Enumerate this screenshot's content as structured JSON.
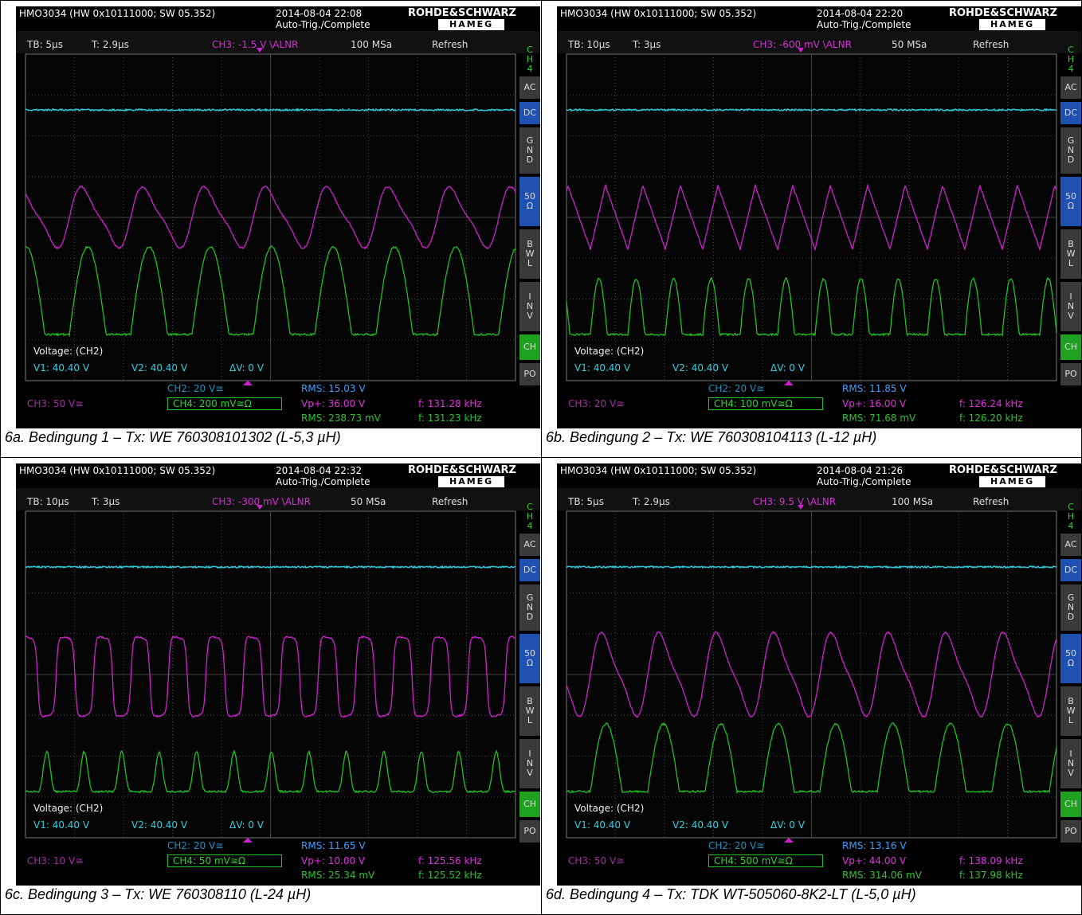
{
  "panels": [
    {
      "header": {
        "model": "HMO3034 (HW 0x10111000; SW 05.352)",
        "datetime": "2014-08-04 22:08",
        "trigger_mode": "Auto-Trig./Complete",
        "brand": "ROHDE&SCHWARZ",
        "sub_brand": "HAMEG"
      },
      "status": {
        "timebase": "TB: 5µs",
        "trigger_time": "T: 2.9µs",
        "trigger": "CH3: -1.5 V \\ALNR",
        "sample_rate": "100 MSa",
        "mode": "Refresh"
      },
      "side_channel": "CH4",
      "side_buttons": [
        "AC",
        "DC",
        "GND",
        "50 Ω",
        "BWL",
        "INV",
        "CH",
        "PO"
      ],
      "cursor": {
        "title": "Voltage: (CH2)",
        "v1": "V1: 40.40 V",
        "v2": "V2: 40.40 V",
        "dv": "ΔV: 0 V"
      },
      "footer": {
        "ch3": "CH3: 50 V≅",
        "ch2": "CH2: 20 V≅",
        "ch4": "CH4: 200 mV≅Ω",
        "rms_ch2": "RMS: 15.03 V",
        "vp_ch3": "Vp+: 36.00 V",
        "rms_ch4": "RMS: 238.73 mV",
        "f_ch3": "f: 131.28 kHz",
        "f_ch4": "f: 131.23 kHz"
      },
      "caption": "6a. Bedingung 1 – Tx: WE 760308101302 (L-5,3 µH)"
    },
    {
      "header": {
        "model": "HMO3034 (HW 0x10111000; SW 05.352)",
        "datetime": "2014-08-04 22:20",
        "trigger_mode": "Auto-Trig./Complete",
        "brand": "ROHDE&SCHWARZ",
        "sub_brand": "HAMEG"
      },
      "status": {
        "timebase": "TB: 10µs",
        "trigger_time": "T: 3µs",
        "trigger": "CH3: -600 mV \\ALNR",
        "sample_rate": "50 MSa",
        "mode": "Refresh"
      },
      "side_channel": "CH4",
      "side_buttons": [
        "AC",
        "DC",
        "GND",
        "50 Ω",
        "BWL",
        "INV",
        "CH",
        "PO"
      ],
      "cursor": {
        "title": "Voltage: (CH2)",
        "v1": "V1: 40.40 V",
        "v2": "V2: 40.40 V",
        "dv": "ΔV: 0 V"
      },
      "footer": {
        "ch3": "CH3: 20 V≅",
        "ch2": "CH2: 20 V≅",
        "ch4": "CH4: 100 mV≅Ω",
        "rms_ch2": "RMS: 11.85 V",
        "vp_ch3": "Vp+: 16.00 V",
        "rms_ch4": "RMS: 71.68 mV",
        "f_ch3": "f: 126.24 kHz",
        "f_ch4": "f: 126.20 kHz"
      },
      "caption": "6b. Bedingung 2 – Tx: WE 760308104113 (L-12 µH)"
    },
    {
      "header": {
        "model": "HMO3034 (HW 0x10111000; SW 05.352)",
        "datetime": "2014-08-04 22:32",
        "trigger_mode": "Auto-Trig./Complete",
        "brand": "ROHDE&SCHWARZ",
        "sub_brand": "HAMEG"
      },
      "status": {
        "timebase": "TB: 10µs",
        "trigger_time": "T: 3µs",
        "trigger": "CH3: -300 mV \\ALNR",
        "sample_rate": "50 MSa",
        "mode": "Refresh"
      },
      "side_channel": "CH4",
      "side_buttons": [
        "AC",
        "DC",
        "GND",
        "50 Ω",
        "BWL",
        "INV",
        "CH",
        "PO"
      ],
      "cursor": {
        "title": "Voltage: (CH2)",
        "v1": "V1: 40.40 V",
        "v2": "V2: 40.40 V",
        "dv": "ΔV: 0 V"
      },
      "footer": {
        "ch3": "CH3: 10 V≅",
        "ch2": "CH2: 20 V≅",
        "ch4": "CH4: 50 mV≅Ω",
        "rms_ch2": "RMS: 11.65 V",
        "vp_ch3": "Vp+: 10.00 V",
        "rms_ch4": "RMS: 25.34 mV",
        "f_ch3": "f: 125.56 kHz",
        "f_ch4": "f: 125.52 kHz"
      },
      "caption": "6c. Bedingung 3 – Tx: WE 760308110 (L-24 µH)"
    },
    {
      "header": {
        "model": "HMO3034 (HW 0x10111000; SW 05.352)",
        "datetime": "2014-08-04 21:26",
        "trigger_mode": "Auto-Trig./Complete",
        "brand": "ROHDE&SCHWARZ",
        "sub_brand": "HAMEG"
      },
      "status": {
        "timebase": "TB: 5µs",
        "trigger_time": "T: 2.9µs",
        "trigger": "CH3: 9.5 V \\ALNR",
        "sample_rate": "100 MSa",
        "mode": "Refresh"
      },
      "side_channel": "CH4",
      "side_buttons": [
        "AC",
        "DC",
        "GND",
        "50 Ω",
        "BWL",
        "INV",
        "CH",
        "PO"
      ],
      "cursor": {
        "title": "Voltage: (CH2)",
        "v1": "V1: 40.40 V",
        "v2": "V2: 40.40 V",
        "dv": "ΔV: 0 V"
      },
      "footer": {
        "ch3": "CH3: 50 V≅",
        "ch2": "CH2: 20 V≅",
        "ch4": "CH4: 500 mV≅Ω",
        "rms_ch2": "RMS: 13.16 V",
        "vp_ch3": "Vp+: 44.00 V",
        "rms_ch4": "RMS: 314.06 mV",
        "f_ch3": "f: 138.09 kHz",
        "f_ch4": "f: 137.98 kHz"
      },
      "caption": "6d. Bedingung 4 – Tx: TDK WT-505060-8K2-LT (L-5,0 µH)"
    }
  ]
}
